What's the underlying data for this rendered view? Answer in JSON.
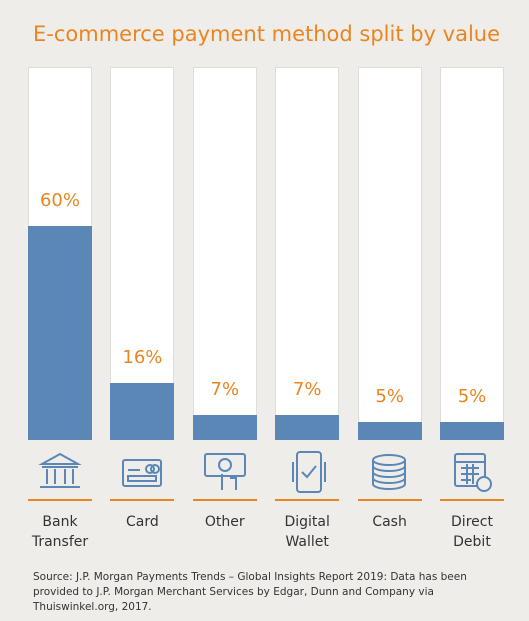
{
  "chart_data": {
    "type": "bar",
    "title": "E-commerce payment method split by value",
    "categories": [
      "Bank Transfer",
      "Card",
      "Other",
      "Digital Wallet",
      "Cash",
      "Direct Debit"
    ],
    "values": [
      60,
      16,
      7,
      7,
      5,
      5
    ],
    "value_labels": [
      "60%",
      "16%",
      "7%",
      "7%",
      "5%",
      "5%"
    ],
    "color": "#5a87b6",
    "ylim": [
      0,
      100
    ],
    "source": "Source: J.P. Morgan Payments Trends – Global Insights Report 2019: Data has been provided to J.P. Morgan Merchant Services by Edgar, Dunn and Company via Thuiswinkel.org, 2017."
  }
}
